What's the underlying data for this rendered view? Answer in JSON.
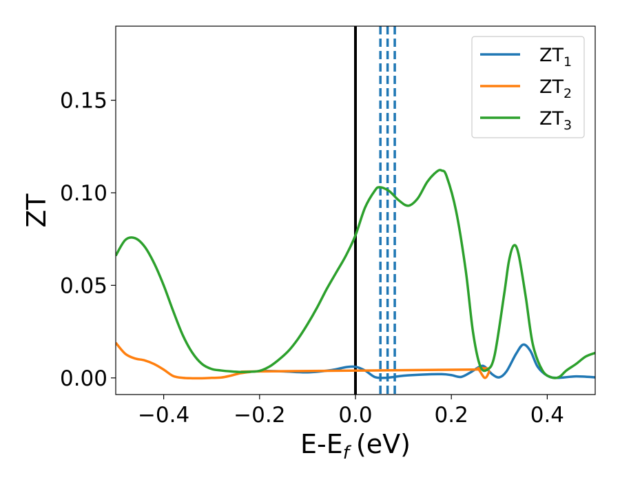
{
  "chart_data": {
    "type": "line",
    "xlabel": "E-E",
    "xlabel_sub": "f",
    "xlabel_unit": "(eV)",
    "ylabel": "ZT",
    "xlim": [
      -0.5,
      0.5
    ],
    "ylim": [
      -0.009,
      0.19
    ],
    "xticks": [
      -0.4,
      -0.2,
      0.0,
      0.2,
      0.4
    ],
    "xtick_labels": [
      "−0.4",
      "−0.2",
      "0.0",
      "0.2",
      "0.4"
    ],
    "yticks": [
      0.0,
      0.05,
      0.1,
      0.15
    ],
    "ytick_labels": [
      "0.00",
      "0.05",
      "0.10",
      "0.15"
    ],
    "grid": false,
    "legend_position": "top-right",
    "colors": {
      "ZT1": "#1f77b4",
      "ZT2": "#ff7f0e",
      "ZT3": "#2ca02c"
    },
    "vertical_lines": [
      {
        "x": 0.0,
        "style": "solid",
        "color": "#000000"
      },
      {
        "x": 0.052,
        "style": "dashed",
        "color": "#1f77b4"
      },
      {
        "x": 0.067,
        "style": "dashed",
        "color": "#1f77b4"
      },
      {
        "x": 0.082,
        "style": "dashed",
        "color": "#1f77b4"
      }
    ],
    "series": [
      {
        "name": "ZT",
        "name_sub": "1",
        "color": "#1f77b4",
        "x": [
          -0.2,
          -0.15,
          -0.1,
          -0.05,
          -0.02,
          0.0,
          0.02,
          0.04,
          0.06,
          0.08,
          0.1,
          0.14,
          0.18,
          0.2,
          0.22,
          0.24,
          0.26,
          0.27,
          0.285,
          0.3,
          0.315,
          0.335,
          0.35,
          0.365,
          0.38,
          0.4,
          0.42,
          0.46,
          0.5
        ],
        "y": [
          0.0038,
          0.0035,
          0.003,
          0.0042,
          0.0058,
          0.006,
          0.004,
          0.0005,
          0.0,
          0.0005,
          0.0012,
          0.0018,
          0.002,
          0.0015,
          0.0005,
          0.003,
          0.0062,
          0.006,
          0.002,
          0.0003,
          0.0035,
          0.013,
          0.018,
          0.0145,
          0.006,
          0.0012,
          0.0,
          0.0008,
          0.0003
        ]
      },
      {
        "name": "ZT",
        "name_sub": "2",
        "color": "#ff7f0e",
        "x": [
          -0.5,
          -0.48,
          -0.46,
          -0.44,
          -0.42,
          -0.4,
          -0.38,
          -0.36,
          -0.34,
          -0.32,
          -0.3,
          -0.28,
          -0.26,
          -0.24,
          -0.22,
          -0.2,
          0.24,
          0.255,
          0.27,
          0.28
        ],
        "y": [
          0.019,
          0.013,
          0.0105,
          0.0095,
          0.0075,
          0.0045,
          0.001,
          0.0,
          -0.0002,
          -0.0002,
          0.0,
          0.0002,
          0.0012,
          0.0025,
          0.0032,
          0.0035,
          0.0045,
          0.005,
          0.0,
          0.004
        ]
      },
      {
        "name": "ZT",
        "name_sub": "3",
        "color": "#2ca02c",
        "x": [
          -0.5,
          -0.48,
          -0.46,
          -0.44,
          -0.42,
          -0.4,
          -0.38,
          -0.36,
          -0.34,
          -0.32,
          -0.3,
          -0.28,
          -0.26,
          -0.24,
          -0.22,
          -0.2,
          -0.18,
          -0.16,
          -0.14,
          -0.12,
          -0.1,
          -0.08,
          -0.06,
          -0.04,
          -0.02,
          0.0,
          0.02,
          0.04,
          0.05,
          0.07,
          0.09,
          0.11,
          0.13,
          0.15,
          0.17,
          0.18,
          0.19,
          0.21,
          0.23,
          0.245,
          0.26,
          0.275,
          0.29,
          0.31,
          0.32,
          0.33,
          0.34,
          0.355,
          0.37,
          0.39,
          0.41,
          0.425,
          0.44,
          0.46,
          0.48,
          0.5
        ],
        "y": [
          0.066,
          0.0745,
          0.0755,
          0.071,
          0.062,
          0.05,
          0.036,
          0.023,
          0.0135,
          0.0075,
          0.0048,
          0.004,
          0.0035,
          0.0032,
          0.0033,
          0.0038,
          0.006,
          0.0098,
          0.0145,
          0.021,
          0.029,
          0.038,
          0.048,
          0.057,
          0.066,
          0.077,
          0.092,
          0.101,
          0.103,
          0.101,
          0.096,
          0.093,
          0.097,
          0.106,
          0.1115,
          0.112,
          0.109,
          0.09,
          0.058,
          0.025,
          0.0065,
          0.0045,
          0.012,
          0.045,
          0.063,
          0.0715,
          0.067,
          0.044,
          0.018,
          0.004,
          0.0002,
          0.0005,
          0.004,
          0.0075,
          0.0115,
          0.0135
        ]
      }
    ]
  }
}
